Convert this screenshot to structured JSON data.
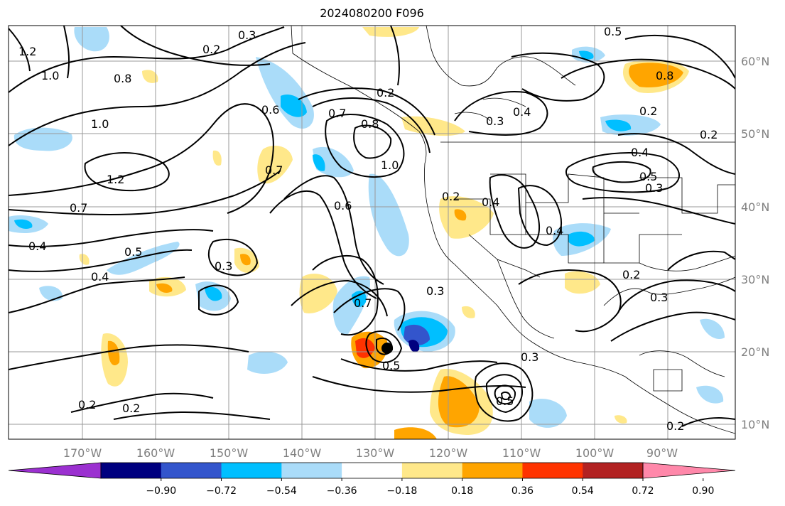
{
  "title": "2024080200 F096",
  "map": {
    "lon_labels": [
      "170°W",
      "160°W",
      "150°W",
      "140°W",
      "130°W",
      "120°W",
      "110°W",
      "100°W",
      "90°W"
    ],
    "lat_labels": [
      "60°N",
      "50°N",
      "40°N",
      "30°N",
      "20°N",
      "10°N"
    ]
  },
  "colorbar": {
    "ticks": [
      "−0.90",
      "−0.72",
      "−0.54",
      "−0.36",
      "−0.18",
      "0.18",
      "0.36",
      "0.54",
      "0.72",
      "0.90"
    ],
    "colors": [
      "#9b30d0",
      "#00007f",
      "#3355cc",
      "#00bfff",
      "#aadcf9",
      "#ffffff",
      "#ffe88a",
      "#ffa500",
      "#ff3300",
      "#b22222",
      "#ff88aa"
    ]
  },
  "contour_labels": [
    "1.2",
    "1.0",
    "0.8",
    "0.3",
    "0.2",
    "0.5",
    "0.3",
    "0.4",
    "0.6",
    "0.7",
    "0.8",
    "1.0",
    "0.2",
    "0.8",
    "1.0",
    "1.2",
    "0.7",
    "0.4",
    "0.5",
    "0.4",
    "0.3",
    "0.7",
    "0.6",
    "0.7",
    "0.5",
    "0.2",
    "0.2",
    "0.3",
    "0.3",
    "0.2",
    "0.4",
    "0.4",
    "0.5",
    "0.3",
    "0.4",
    "0.2",
    "0.3",
    "0.2",
    "0.2",
    "0.2",
    "0.5"
  ]
}
